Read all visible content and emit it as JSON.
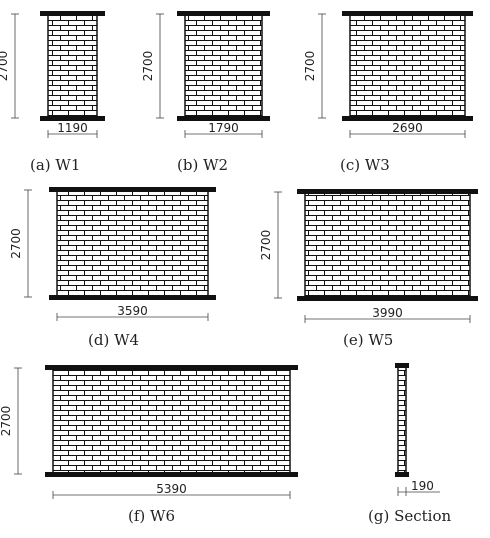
{
  "panels": [
    {
      "caption": "(a)  W1",
      "height": 2700,
      "width": 1190
    },
    {
      "caption": "(b)  W2",
      "height": 2700,
      "width": 1790
    },
    {
      "caption": "(c)  W3",
      "height": 2700,
      "width": 2690
    },
    {
      "caption": "(d)  W4",
      "height": 2700,
      "width": 3590
    },
    {
      "caption": "(e)  W5",
      "height": 2700,
      "width": 3990
    },
    {
      "caption": "(f)  W6",
      "height": 2700,
      "width": 5390
    }
  ],
  "section": {
    "caption": "(g)  Section",
    "width": 190
  }
}
